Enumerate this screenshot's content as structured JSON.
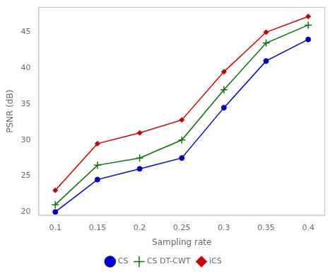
{
  "chart_data": {
    "type": "line",
    "x": [
      0.1,
      0.15,
      0.2,
      0.25,
      0.3,
      0.35,
      0.4
    ],
    "series": [
      {
        "name": "CS",
        "color": "#0000cc",
        "marker": "circle",
        "values": [
          20.0,
          24.5,
          26.0,
          27.5,
          34.5,
          41.0,
          44.0
        ]
      },
      {
        "name": "CS DT-CWT",
        "color": "#007700",
        "marker": "plus",
        "values": [
          21.0,
          26.5,
          27.5,
          30.0,
          37.0,
          43.5,
          46.0
        ]
      },
      {
        "name": "iCS",
        "color": "#cc0000",
        "marker": "diamond",
        "values": [
          23.0,
          29.5,
          31.0,
          32.8,
          39.5,
          45.0,
          47.2
        ]
      }
    ],
    "x_label": "Sampling rate",
    "y_label": "PSNR (dB)",
    "xlim": [
      0.08,
      0.42
    ],
    "ylim": [
      19.5,
      48.5
    ],
    "xticks": [
      0.1,
      0.15,
      0.2,
      0.25,
      0.3,
      0.35,
      0.4
    ],
    "yticks": [
      20,
      25,
      30,
      35,
      40,
      45
    ],
    "grid": false,
    "legend": "bottom"
  }
}
